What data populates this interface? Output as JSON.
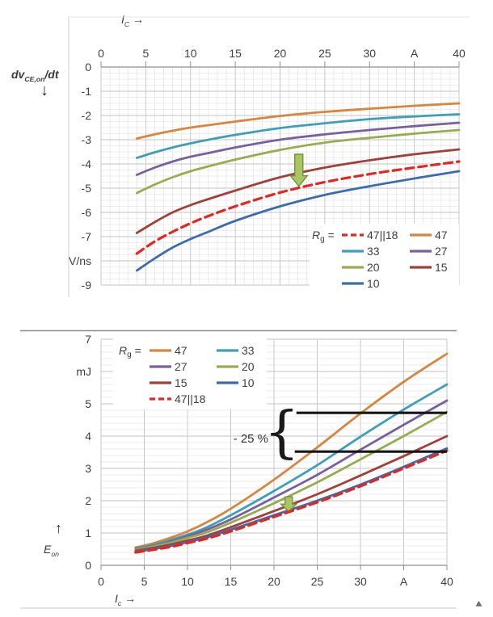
{
  "colors": {
    "text": "#3F3F3F",
    "grid_minor": "#DDDDDD",
    "grid_major": "#C3C3C3",
    "axis": "#8F8F8F",
    "legend_bg": "#FFFFFF",
    "black_line": "#161616",
    "arrow_fill": "#A9C566",
    "arrow_stroke": "#75923C",
    "frame": "#CFCFCF",
    "frame_dark": "#8C8C8C"
  },
  "chart_data": [
    {
      "id": "dvdt-vs-ic",
      "type": "line",
      "title": "",
      "x_title": {
        "sym": "I",
        "sub": "C",
        "arrow": "→"
      },
      "y_title": {
        "pre": "dv",
        "sub": "CE,on",
        "post": "/dt",
        "arrow": "↓"
      },
      "x_unit": "A",
      "y_unit": "V/ns",
      "xlim": [
        0,
        40
      ],
      "ylim": [
        -9,
        0
      ],
      "grid": {
        "x_minor": 1,
        "x_major": 5,
        "y_minor": 0.25,
        "y_major": 1
      },
      "x_ticks": [
        {
          "v": 0,
          "label": "0"
        },
        {
          "v": 5,
          "label": "5"
        },
        {
          "v": 10,
          "label": "10"
        },
        {
          "v": 15,
          "label": "15"
        },
        {
          "v": 20,
          "label": "20"
        },
        {
          "v": 25,
          "label": "25"
        },
        {
          "v": 30,
          "label": "30"
        },
        {
          "v": 35,
          "label": "A"
        },
        {
          "v": 40,
          "label": "40"
        }
      ],
      "y_ticks": [
        {
          "v": 0,
          "label": "0"
        },
        {
          "v": -1,
          "label": "-1"
        },
        {
          "v": -2,
          "label": "-2"
        },
        {
          "v": -3,
          "label": "-3"
        },
        {
          "v": -4,
          "label": "-4"
        },
        {
          "v": -5,
          "label": "-5"
        },
        {
          "v": -6,
          "label": "-6"
        },
        {
          "v": -7,
          "label": "-7"
        },
        {
          "v": -8,
          "label": "V/ns"
        },
        {
          "v": -9,
          "label": "-9"
        }
      ],
      "legend_prefix": {
        "sym": "R",
        "sub": "g",
        "eq": " ="
      },
      "legend_rows": [
        [
          "47||18",
          "47"
        ],
        [
          "33",
          "27"
        ],
        [
          "20",
          "15"
        ],
        [
          "10"
        ]
      ],
      "x": [
        4,
        6,
        8,
        10,
        12,
        15,
        20,
        25,
        30,
        35,
        40
      ],
      "series": [
        {
          "name": "47",
          "color": "#D9853B",
          "dash": false,
          "values": [
            -2.95,
            -2.78,
            -2.63,
            -2.5,
            -2.4,
            -2.25,
            -2.02,
            -1.85,
            -1.72,
            -1.6,
            -1.5
          ]
        },
        {
          "name": "33",
          "color": "#3E9FBA",
          "dash": false,
          "values": [
            -3.75,
            -3.52,
            -3.32,
            -3.15,
            -3.0,
            -2.8,
            -2.52,
            -2.32,
            -2.15,
            -2.04,
            -1.95
          ]
        },
        {
          "name": "27",
          "color": "#7A5FA0",
          "dash": false,
          "values": [
            -4.45,
            -4.15,
            -3.9,
            -3.7,
            -3.55,
            -3.32,
            -3.0,
            -2.78,
            -2.6,
            -2.44,
            -2.3
          ]
        },
        {
          "name": "20",
          "color": "#97AC4F",
          "dash": false,
          "values": [
            -5.2,
            -4.85,
            -4.55,
            -4.3,
            -4.1,
            -3.82,
            -3.42,
            -3.12,
            -2.92,
            -2.75,
            -2.6
          ]
        },
        {
          "name": "15",
          "color": "#A23F39",
          "dash": false,
          "values": [
            -6.85,
            -6.4,
            -6.0,
            -5.7,
            -5.45,
            -5.1,
            -4.55,
            -4.15,
            -3.85,
            -3.6,
            -3.4
          ]
        },
        {
          "name": "10",
          "color": "#3B6CB0",
          "dash": false,
          "values": [
            -8.4,
            -7.9,
            -7.45,
            -7.1,
            -6.8,
            -6.35,
            -5.75,
            -5.28,
            -4.92,
            -4.6,
            -4.3
          ]
        },
        {
          "name": "47||18",
          "color": "#E52520",
          "dash": true,
          "values": [
            -7.7,
            -7.2,
            -6.8,
            -6.45,
            -6.15,
            -5.75,
            -5.18,
            -4.75,
            -4.42,
            -4.15,
            -3.9
          ]
        }
      ],
      "annotations": {
        "arrow": {
          "x": 22.1,
          "y_from": -3.6,
          "y_to": -4.92
        }
      }
    },
    {
      "id": "eon-vs-ic",
      "type": "line",
      "title": "",
      "x_title": {
        "sym": "I",
        "sub": "c",
        "arrow": "→"
      },
      "y_title": {
        "sym": "E",
        "sub": "on",
        "arrow": "↑"
      },
      "x_unit": "A",
      "y_unit": "mJ",
      "xlim": [
        0,
        40
      ],
      "ylim": [
        0,
        7
      ],
      "grid": {
        "x_minor": null,
        "x_major": 5,
        "y_minor": 0.2,
        "y_major": 1
      },
      "x_ticks": [
        {
          "v": 0,
          "label": "0"
        },
        {
          "v": 5,
          "label": "5"
        },
        {
          "v": 10,
          "label": "10"
        },
        {
          "v": 15,
          "label": "15"
        },
        {
          "v": 20,
          "label": "20"
        },
        {
          "v": 25,
          "label": "25"
        },
        {
          "v": 30,
          "label": "30"
        },
        {
          "v": 35,
          "label": "A"
        },
        {
          "v": 40,
          "label": "40"
        }
      ],
      "y_ticks": [
        {
          "v": 0,
          "label": "0"
        },
        {
          "v": 1,
          "label": "1"
        },
        {
          "v": 2,
          "label": "2"
        },
        {
          "v": 3,
          "label": "3"
        },
        {
          "v": 4,
          "label": "4"
        },
        {
          "v": 5,
          "label": "5"
        },
        {
          "v": 6,
          "label": "mJ"
        },
        {
          "v": 7,
          "label": "7"
        }
      ],
      "legend_prefix": {
        "sym": "R",
        "sub": "g",
        "eq": " ="
      },
      "legend_rows": [
        [
          "47",
          "33"
        ],
        [
          "27",
          "20"
        ],
        [
          "15",
          "10"
        ],
        [
          "47||18"
        ]
      ],
      "x": [
        4,
        6,
        8,
        10,
        12,
        15,
        20,
        25,
        30,
        35,
        40
      ],
      "series": [
        {
          "name": "47",
          "color": "#D9853B",
          "dash": false,
          "values": [
            0.55,
            0.68,
            0.85,
            1.05,
            1.3,
            1.75,
            2.65,
            3.65,
            4.7,
            5.68,
            6.55
          ]
        },
        {
          "name": "33",
          "color": "#3E9FBA",
          "dash": false,
          "values": [
            0.52,
            0.63,
            0.78,
            0.95,
            1.15,
            1.55,
            2.3,
            3.1,
            3.98,
            4.82,
            5.6
          ]
        },
        {
          "name": "27",
          "color": "#7A5FA0",
          "dash": false,
          "values": [
            0.5,
            0.6,
            0.73,
            0.9,
            1.08,
            1.42,
            2.1,
            2.8,
            3.58,
            4.35,
            5.1
          ]
        },
        {
          "name": "20",
          "color": "#97AC4F",
          "dash": false,
          "values": [
            0.48,
            0.58,
            0.7,
            0.85,
            1.0,
            1.32,
            1.92,
            2.57,
            3.28,
            4.0,
            4.75
          ]
        },
        {
          "name": "15",
          "color": "#A23F39",
          "dash": false,
          "values": [
            0.45,
            0.54,
            0.64,
            0.77,
            0.9,
            1.18,
            1.68,
            2.2,
            2.78,
            3.38,
            4.0
          ]
        },
        {
          "name": "10",
          "color": "#3B6CB0",
          "dash": false,
          "values": [
            0.42,
            0.5,
            0.6,
            0.72,
            0.85,
            1.1,
            1.55,
            2.0,
            2.5,
            3.05,
            3.62
          ]
        },
        {
          "name": "47||18",
          "color": "#E52520",
          "dash": true,
          "values": [
            0.4,
            0.48,
            0.57,
            0.69,
            0.81,
            1.05,
            1.5,
            1.95,
            2.45,
            3.0,
            3.55
          ]
        }
      ],
      "annotations": {
        "arrow": {
          "x": 21.7,
          "y_from": 2.12,
          "y_to": 1.67
        },
        "hlines": [
          {
            "y": 4.72,
            "x1": 22.6,
            "x2": 40
          },
          {
            "y": 3.52,
            "x1": 22.4,
            "x2": 40
          }
        ],
        "brace": {
          "glyph": "{",
          "x": 20.9,
          "y_top": 4.85,
          "y_bottom": 3.38,
          "label": "- 25 %",
          "label_x": 19.35,
          "label_y": 3.93
        }
      }
    }
  ]
}
